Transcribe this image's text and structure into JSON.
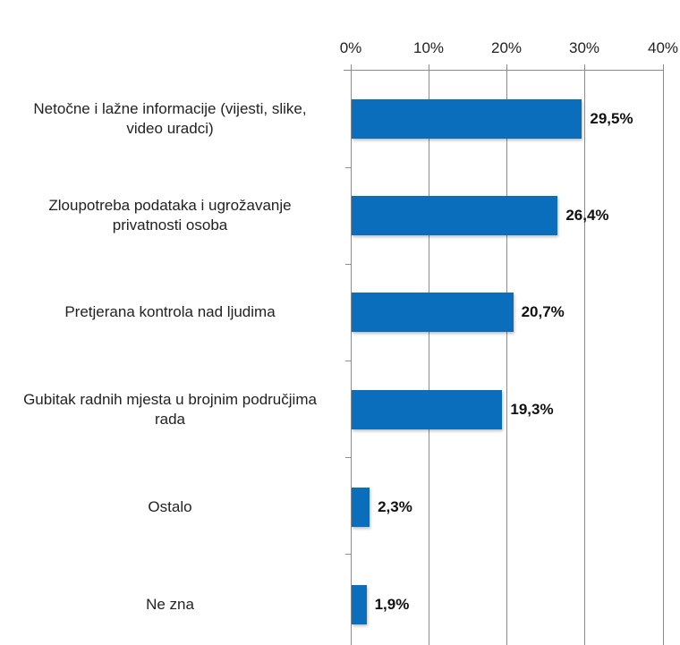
{
  "chart_data": {
    "type": "bar",
    "orientation": "horizontal",
    "title": "",
    "xlabel": "",
    "ylabel": "",
    "xlim": [
      0,
      40
    ],
    "x_ticks": [
      "0%",
      "10%",
      "20%",
      "30%",
      "40%"
    ],
    "grid": true,
    "legend": null,
    "bar_color": "#0a6ebd",
    "categories": [
      "Netočne i lažne informacije (vijesti, slike, video uradci)",
      "Zloupotreba podataka i ugrožavanje privatnosti osoba",
      "Pretjerana kontrola nad ljudima",
      "Gubitak radnih mjesta u brojnim područjima rada",
      "Ostalo",
      "Ne zna"
    ],
    "values": [
      29.5,
      26.4,
      20.7,
      19.3,
      2.3,
      1.9
    ],
    "value_labels": [
      "29,5%",
      "26,4%",
      "20,7%",
      "19,3%",
      "2,3%",
      "1,9%"
    ]
  },
  "axis": {
    "ticks": [
      {
        "label": "0%",
        "value": 0
      },
      {
        "label": "10%",
        "value": 10
      },
      {
        "label": "20%",
        "value": 20
      },
      {
        "label": "30%",
        "value": 30
      },
      {
        "label": "40%",
        "value": 40
      }
    ]
  },
  "bars": [
    {
      "label_lines": [
        "Netočne i lažne informacije (vijesti, slike,",
        "video uradci)"
      ],
      "value": 29.5,
      "value_label": "29,5%"
    },
    {
      "label_lines": [
        "Zloupotreba podataka i ugrožavanje",
        "privatnosti osoba"
      ],
      "value": 26.4,
      "value_label": "26,4%"
    },
    {
      "label_lines": [
        "Pretjerana kontrola nad ljudima"
      ],
      "value": 20.7,
      "value_label": "20,7%"
    },
    {
      "label_lines": [
        "Gubitak radnih mjesta u brojnim područjima",
        "rada"
      ],
      "value": 19.3,
      "value_label": "19,3%"
    },
    {
      "label_lines": [
        "Ostalo"
      ],
      "value": 2.3,
      "value_label": "2,3%"
    },
    {
      "label_lines": [
        "Ne zna"
      ],
      "value": 1.9,
      "value_label": "1,9%"
    }
  ]
}
